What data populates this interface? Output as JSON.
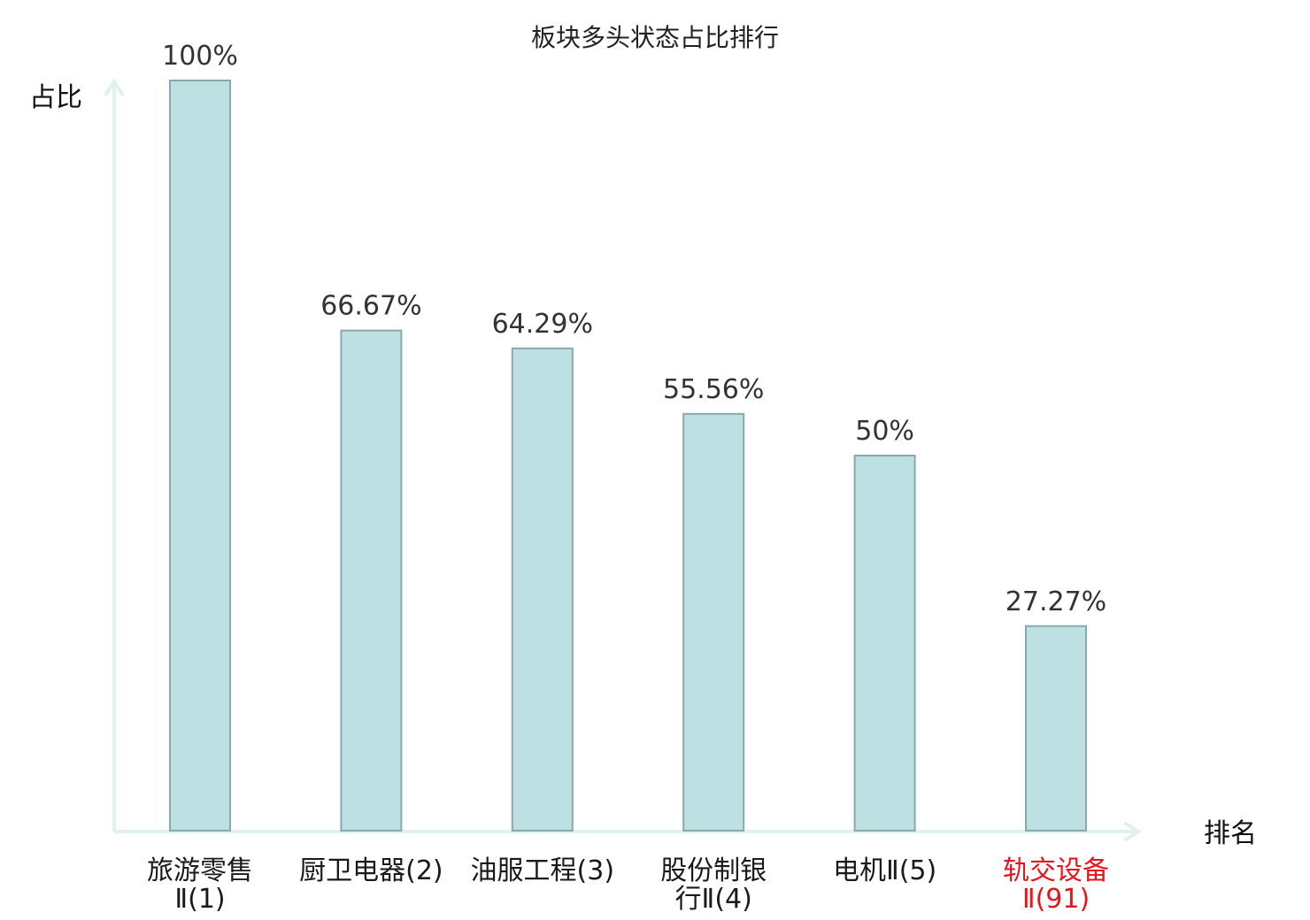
{
  "chart_data": {
    "type": "bar",
    "title": "板块多头状态占比排行",
    "ylabel": "占比",
    "xlabel": "排名",
    "ylim": [
      0,
      100
    ],
    "categories": [
      [
        "旅游零售",
        "Ⅱ(1)"
      ],
      [
        "厨卫电器(2)"
      ],
      [
        "油服工程(3)"
      ],
      [
        "股份制银",
        "行Ⅱ(4)"
      ],
      [
        "电机Ⅱ(5)"
      ],
      [
        "轨交设备",
        "Ⅱ(91)"
      ]
    ],
    "values": [
      100,
      66.67,
      64.29,
      55.56,
      50,
      27.27
    ],
    "value_labels": [
      "100%",
      "66.67%",
      "64.29%",
      "55.56%",
      "50%",
      "27.27%"
    ],
    "highlight_index": 5,
    "colors": {
      "bar_fill": "#bde0e2",
      "bar_stroke": "#8aa9ac",
      "axis": "#dff2ef",
      "highlight_text": "#e8141b"
    },
    "grid": false,
    "legend": "none"
  }
}
